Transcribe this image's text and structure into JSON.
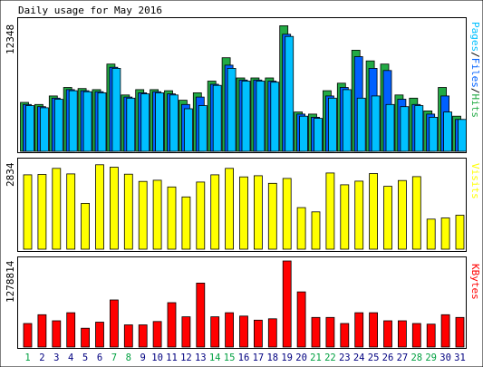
{
  "chart_data": {
    "type": "bar",
    "title": "Daily usage for May 2016",
    "categories": [
      "1",
      "2",
      "3",
      "4",
      "5",
      "6",
      "7",
      "8",
      "9",
      "10",
      "11",
      "12",
      "13",
      "14",
      "15",
      "16",
      "17",
      "18",
      "19",
      "20",
      "21",
      "22",
      "23",
      "24",
      "25",
      "26",
      "27",
      "28",
      "29",
      "30",
      "31"
    ],
    "weekend_days": [
      "1",
      "7",
      "8",
      "14",
      "15",
      "21",
      "22",
      "28",
      "29"
    ],
    "usage_panel": {
      "ymax_label": "12348",
      "ymax": 12348,
      "right_labels": {
        "pages": "Pages",
        "files": "Files",
        "hits": "Hits",
        "sep": "/"
      },
      "series": [
        {
          "name": "Hits",
          "color": "#22aa44",
          "values": [
            4600,
            4400,
            5200,
            6000,
            5900,
            5800,
            8200,
            5300,
            5800,
            5800,
            5700,
            4800,
            5500,
            6600,
            8800,
            6900,
            6900,
            6900,
            11800,
            3700,
            3500,
            5700,
            6400,
            9500,
            8500,
            8200,
            5300,
            5000,
            3800,
            6000,
            3300
          ]
        },
        {
          "name": "Files",
          "color": "#0060ff",
          "values": [
            4400,
            4200,
            5000,
            5800,
            5700,
            5600,
            7900,
            5100,
            5500,
            5600,
            5400,
            4400,
            5100,
            6300,
            8100,
            6700,
            6700,
            6600,
            11000,
            3500,
            3200,
            5200,
            6000,
            8900,
            7800,
            7600,
            4900,
            4400,
            3500,
            5200,
            3000
          ]
        },
        {
          "name": "Pages",
          "color": "#00c0ff",
          "values": [
            4300,
            4100,
            4900,
            5700,
            5600,
            5500,
            7800,
            5000,
            5400,
            5500,
            5300,
            4000,
            4300,
            6200,
            7800,
            6600,
            6600,
            6500,
            10800,
            3300,
            3100,
            5000,
            5800,
            5000,
            5200,
            4400,
            4200,
            4300,
            3200,
            3700,
            3000
          ]
        }
      ]
    },
    "visits_panel": {
      "ymax_label": "2834",
      "ymax": 2834,
      "right_label": "Visits",
      "series": [
        {
          "name": "Visits",
          "color": "#ffff00",
          "values": [
            2450,
            2460,
            2660,
            2480,
            1510,
            2780,
            2700,
            2470,
            2230,
            2270,
            2050,
            1720,
            2210,
            2450,
            2660,
            2380,
            2420,
            2170,
            2330,
            1370,
            1230,
            2510,
            2120,
            2240,
            2490,
            2070,
            2260,
            2390,
            990,
            1030,
            1120
          ]
        }
      ]
    },
    "kbytes_panel": {
      "ymax_label": "1278814",
      "ymax": 1278814,
      "right_label": "KBytes",
      "series": [
        {
          "name": "KBytes",
          "color": "#ff0000",
          "values": [
            350000,
            480000,
            390000,
            510000,
            280000,
            370000,
            700000,
            330000,
            330000,
            380000,
            660000,
            450000,
            950000,
            450000,
            510000,
            460000,
            400000,
            420000,
            1278814,
            820000,
            440000,
            440000,
            350000,
            510000,
            510000,
            390000,
            390000,
            350000,
            340000,
            480000,
            440000
          ]
        }
      ]
    }
  }
}
